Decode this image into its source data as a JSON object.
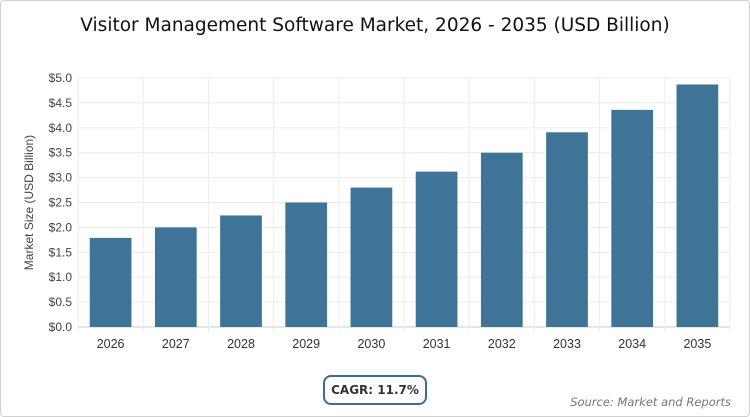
{
  "chart_data": {
    "type": "bar",
    "title": "Visitor Management Software Market, 2026 - 2035 (USD Billion)",
    "xlabel": "",
    "ylabel": "Market Size (USD Billion)",
    "categories": [
      "2026",
      "2027",
      "2028",
      "2029",
      "2030",
      "2031",
      "2032",
      "2033",
      "2034",
      "2035"
    ],
    "values": [
      1.79,
      2.0,
      2.24,
      2.5,
      2.8,
      3.12,
      3.5,
      3.91,
      4.36,
      4.87
    ],
    "ylim": [
      0,
      5
    ],
    "yticks": [
      "$0.0",
      "$0.5",
      "$1.0",
      "$1.5",
      "$2.0",
      "$2.5",
      "$3.0",
      "$3.5",
      "$4.0",
      "$4.5",
      "$5.0"
    ],
    "grid": true,
    "bar_color": "#3d7498"
  },
  "cagr_label": "CAGR: 11.7%",
  "source": "Source: Market and Reports"
}
